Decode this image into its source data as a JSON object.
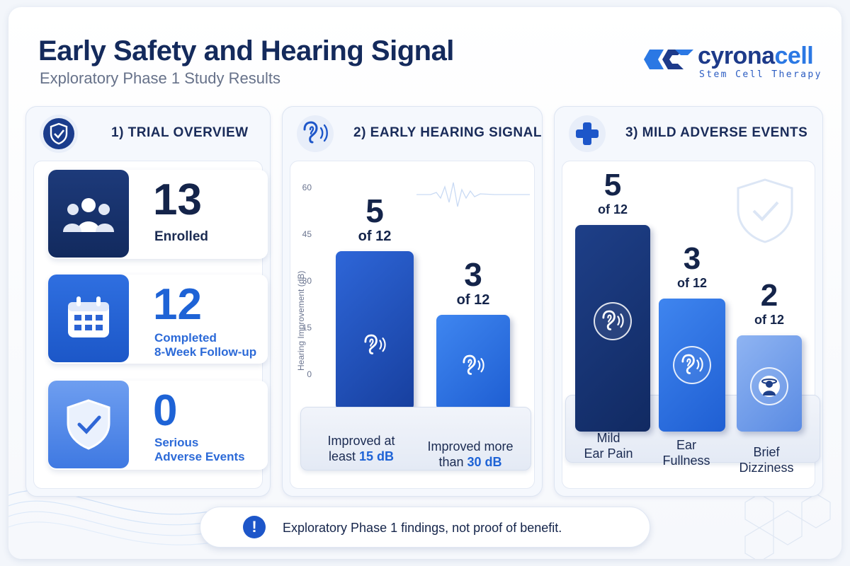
{
  "header": {
    "title": "Early Safety and Hearing Signal",
    "subtitle": "Exploratory Phase 1 Study Results"
  },
  "brand": {
    "name_part1": "cyrona",
    "name_part2": "cell",
    "tagline": "Stem Cell Therapy",
    "colors": {
      "navy": "#1d3a8a",
      "blue": "#2b78e4"
    }
  },
  "panels": {
    "overview": {
      "title": "1) TRIAL OVERVIEW",
      "icon": "shield-check-icon",
      "stats": [
        {
          "value": "13",
          "label": "Enrolled",
          "icon": "people-icon"
        },
        {
          "value": "12",
          "label_line1": "Completed",
          "label_line2": "8-Week Follow-up",
          "icon": "calendar-icon"
        },
        {
          "value": "0",
          "label_line1": "Serious",
          "label_line2": "Adverse Events",
          "icon": "shield-check-icon"
        }
      ]
    },
    "hearing": {
      "title": "2) EARLY HEARING SIGNAL",
      "icon": "ear-icon",
      "axis": {
        "label": "Hearing Improvement (dB)",
        "ticks": [
          "60",
          "45",
          "30",
          "15",
          "0"
        ]
      },
      "bars": [
        {
          "value": "5",
          "of": "of 12",
          "count": 5,
          "label_a": "Improved at",
          "label_b": "least ",
          "label_hl": "15 dB",
          "icon": "ear-icon"
        },
        {
          "value": "3",
          "of": "of 12",
          "count": 3,
          "label_a": "Improved more",
          "label_b": "than ",
          "label_hl": "30 dB",
          "icon": "ear-icon"
        }
      ]
    },
    "adverse": {
      "title": "3) MILD ADVERSE EVENTS",
      "icon": "plus-icon",
      "bars": [
        {
          "value": "5",
          "of": "of 12",
          "count": 5,
          "label_a": "Mild",
          "label_b": "Ear Pain",
          "icon": "ear-pain-icon"
        },
        {
          "value": "3",
          "of": "of 12",
          "count": 3,
          "label_a": "Ear",
          "label_b": "Fullness",
          "icon": "ear-icon"
        },
        {
          "value": "2",
          "of": "of 12",
          "count": 2,
          "label_a": "Brief",
          "label_b": "Dizziness",
          "icon": "dizziness-icon"
        }
      ]
    }
  },
  "footer": {
    "text": "Exploratory Phase 1 findings, not proof of benefit.",
    "icon": "info-icon"
  }
}
